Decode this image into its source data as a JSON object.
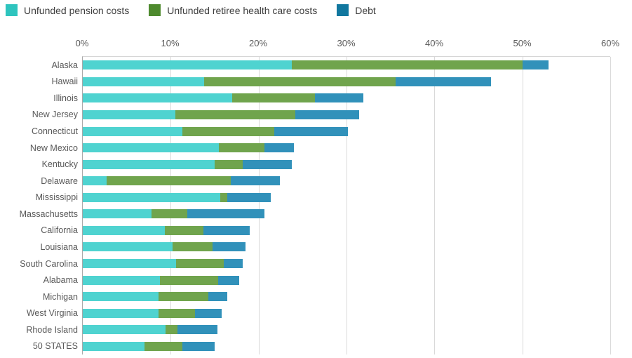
{
  "legend": {
    "items": [
      {
        "label": "Unfunded pension costs",
        "color": "#2ec4be"
      },
      {
        "label": "Unfunded retiree health care costs",
        "color": "#4e8a2e"
      },
      {
        "label": "Debt",
        "color": "#11779f"
      }
    ]
  },
  "axis": {
    "tick_labels": [
      "0%",
      "10%",
      "20%",
      "30%",
      "40%",
      "50%",
      "60%"
    ],
    "max": 60
  },
  "chart_data": {
    "type": "bar",
    "orientation": "horizontal",
    "stacked": true,
    "title": "",
    "xlabel": "",
    "ylabel": "",
    "xlim": [
      0,
      60
    ],
    "x_tick_labels": [
      "0%",
      "10%",
      "20%",
      "30%",
      "40%",
      "50%",
      "60%"
    ],
    "grid": true,
    "legend_position": "top-left",
    "categories": [
      "Alaska",
      "Hawaii",
      "Illinois",
      "New Jersey",
      "Connecticut",
      "New Mexico",
      "Kentucky",
      "Delaware",
      "Mississippi",
      "Massachusetts",
      "California",
      "Louisiana",
      "South Carolina",
      "Alabama",
      "Michigan",
      "West Virginia",
      "Rhode Island",
      "50 STATES"
    ],
    "series": [
      {
        "name": "Unfunded pension costs",
        "color": "#4fd3d0",
        "values": [
          23.8,
          13.8,
          17.0,
          10.5,
          11.3,
          15.5,
          15.0,
          2.7,
          15.6,
          7.8,
          9.3,
          10.2,
          10.6,
          8.8,
          8.6,
          8.6,
          9.4,
          7.0
        ]
      },
      {
        "name": "Unfunded retiree health care costs",
        "color": "#70a44d",
        "values": [
          26.2,
          21.8,
          9.4,
          13.7,
          10.5,
          5.2,
          3.2,
          14.1,
          0.8,
          4.1,
          4.4,
          4.6,
          5.4,
          6.6,
          5.7,
          4.2,
          1.4,
          4.3
        ]
      },
      {
        "name": "Debt",
        "color": "#3191ba",
        "values": [
          3.0,
          10.8,
          5.5,
          7.2,
          8.4,
          3.3,
          5.6,
          5.6,
          5.0,
          8.8,
          5.3,
          3.7,
          2.2,
          2.4,
          2.1,
          3.0,
          4.5,
          3.7
        ]
      }
    ],
    "totals": [
      53.0,
      46.4,
      31.9,
      31.4,
      30.2,
      24.0,
      23.8,
      22.4,
      21.4,
      20.7,
      19.0,
      18.5,
      18.2,
      17.8,
      16.4,
      15.8,
      15.3,
      15.0
    ]
  }
}
